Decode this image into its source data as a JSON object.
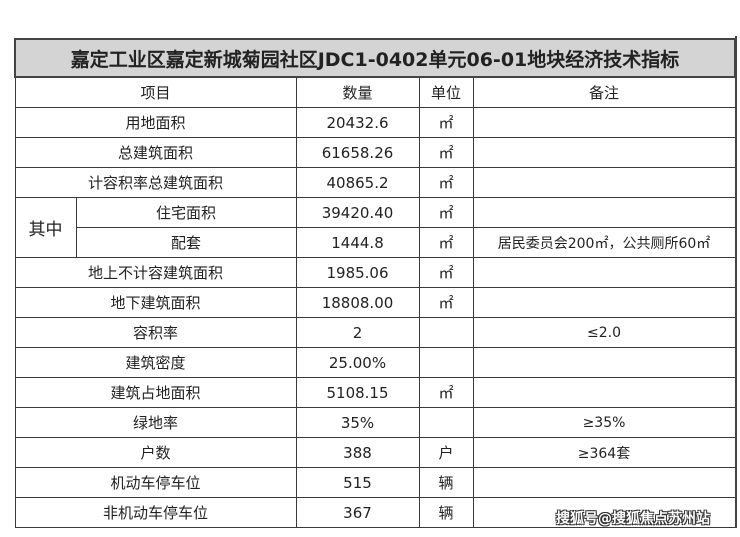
{
  "title": "嘉定工业区嘉定新城菊园社区JDC1-0402单元06-01地块经济技术指标",
  "headers": {
    "item": "项目",
    "quantity": "数量",
    "unit": "单位",
    "note": "备注"
  },
  "group_label": "其中",
  "rows": [
    {
      "item": "用地面积",
      "quantity": "20432.6",
      "unit": "㎡",
      "note": ""
    },
    {
      "item": "总建筑面积",
      "quantity": "61658.26",
      "unit": "㎡",
      "note": ""
    },
    {
      "item": "计容积率总建筑面积",
      "quantity": "40865.2",
      "unit": "㎡",
      "note": ""
    },
    {
      "item": "住宅面积",
      "quantity": "39420.40",
      "unit": "㎡",
      "note": ""
    },
    {
      "item": "配套",
      "quantity": "1444.8",
      "unit": "㎡",
      "note": "居民委员会200㎡，公共厕所60㎡"
    },
    {
      "item": "地上不计容建筑面积",
      "quantity": "1985.06",
      "unit": "㎡",
      "note": ""
    },
    {
      "item": "地下建筑面积",
      "quantity": "18808.00",
      "unit": "㎡",
      "note": ""
    },
    {
      "item": "容积率",
      "quantity": "2",
      "unit": "",
      "note": "≤2.0"
    },
    {
      "item": "建筑密度",
      "quantity": "25.00%",
      "unit": "",
      "note": ""
    },
    {
      "item": "建筑占地面积",
      "quantity": "5108.15",
      "unit": "㎡",
      "note": ""
    },
    {
      "item": "绿地率",
      "quantity": "35%",
      "unit": "",
      "note": "≥35%"
    },
    {
      "item": "户数",
      "quantity": "388",
      "unit": "户",
      "note": "≥364套"
    },
    {
      "item": "机动车停车位",
      "quantity": "515",
      "unit": "辆",
      "note": ""
    },
    {
      "item": "非机动车停车位",
      "quantity": "367",
      "unit": "辆",
      "note": ""
    }
  ],
  "watermark": "搜狐号@搜狐焦点苏州站"
}
